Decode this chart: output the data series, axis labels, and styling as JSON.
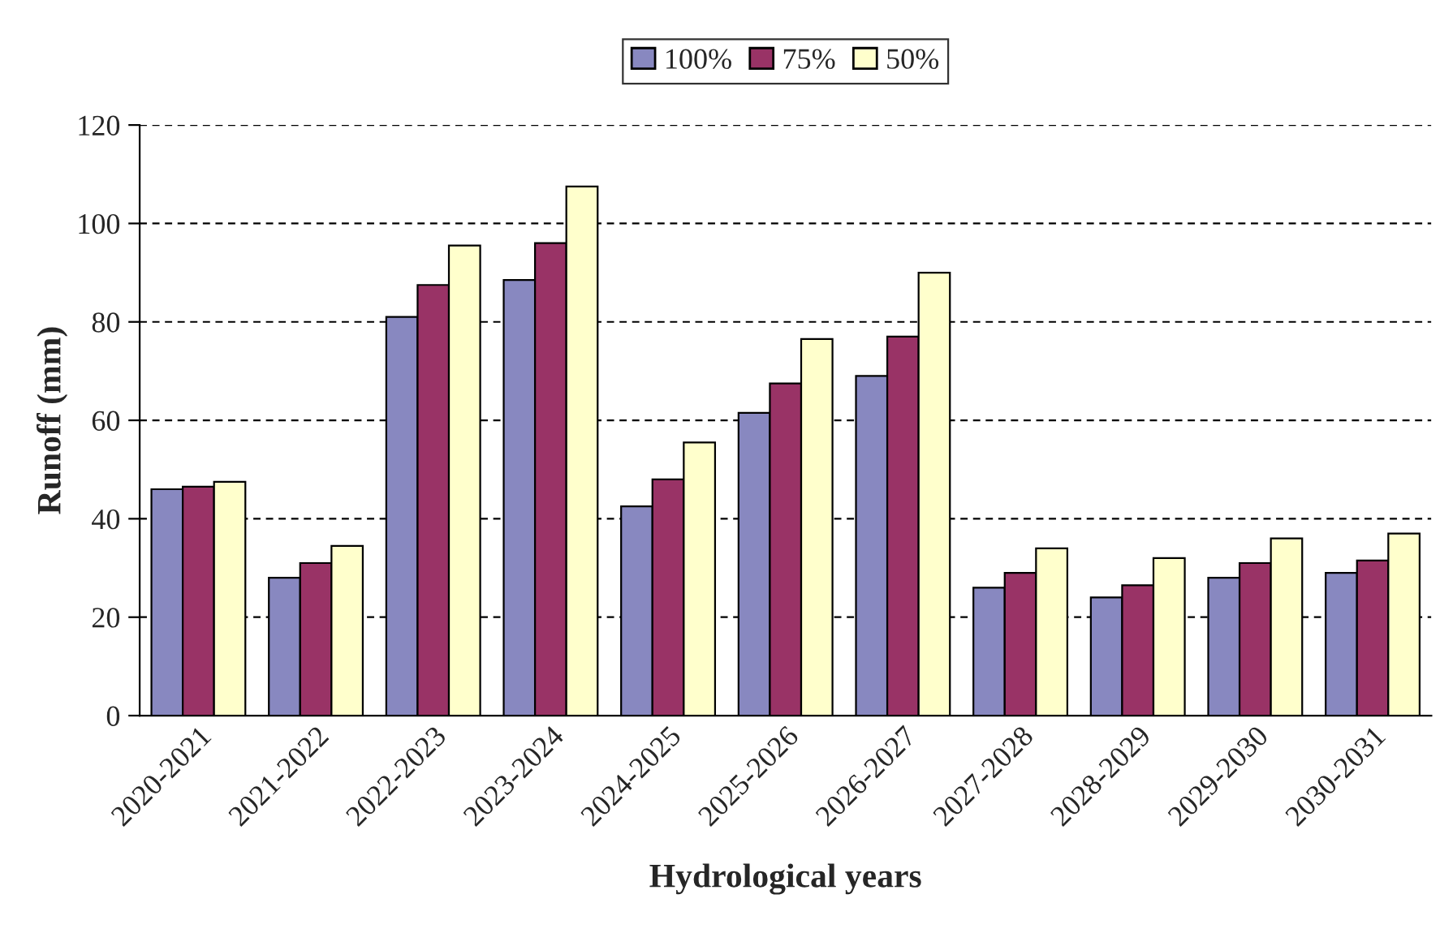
{
  "chart_data": {
    "type": "bar",
    "xlabel": "Hydrological years",
    "ylabel": "Runoff (mm)",
    "categories": [
      "2020-2021",
      "2021-2022",
      "2022-2023",
      "2023-2024",
      "2024-2025",
      "2025-2026",
      "2026-2027",
      "2027-2028",
      "2028-2029",
      "2029-2030",
      "2030-2031"
    ],
    "series": [
      {
        "name": "100%",
        "color": "#8888c0",
        "values": [
          46,
          28,
          81,
          88.5,
          42.5,
          61.5,
          69,
          26,
          24,
          28,
          29
        ]
      },
      {
        "name": "75%",
        "color": "#993366",
        "values": [
          46.5,
          31,
          87.5,
          96,
          48,
          67.5,
          77,
          29,
          26.5,
          31,
          31.5
        ]
      },
      {
        "name": "50%",
        "color": "#ffffcc",
        "values": [
          47.5,
          34.5,
          95.5,
          107.5,
          55.5,
          76.5,
          90,
          34,
          32,
          36,
          37
        ]
      }
    ],
    "ylim": [
      0,
      120
    ],
    "yticks": [
      0,
      20,
      40,
      60,
      80,
      100,
      120
    ],
    "grid": "y",
    "legend": "top"
  }
}
